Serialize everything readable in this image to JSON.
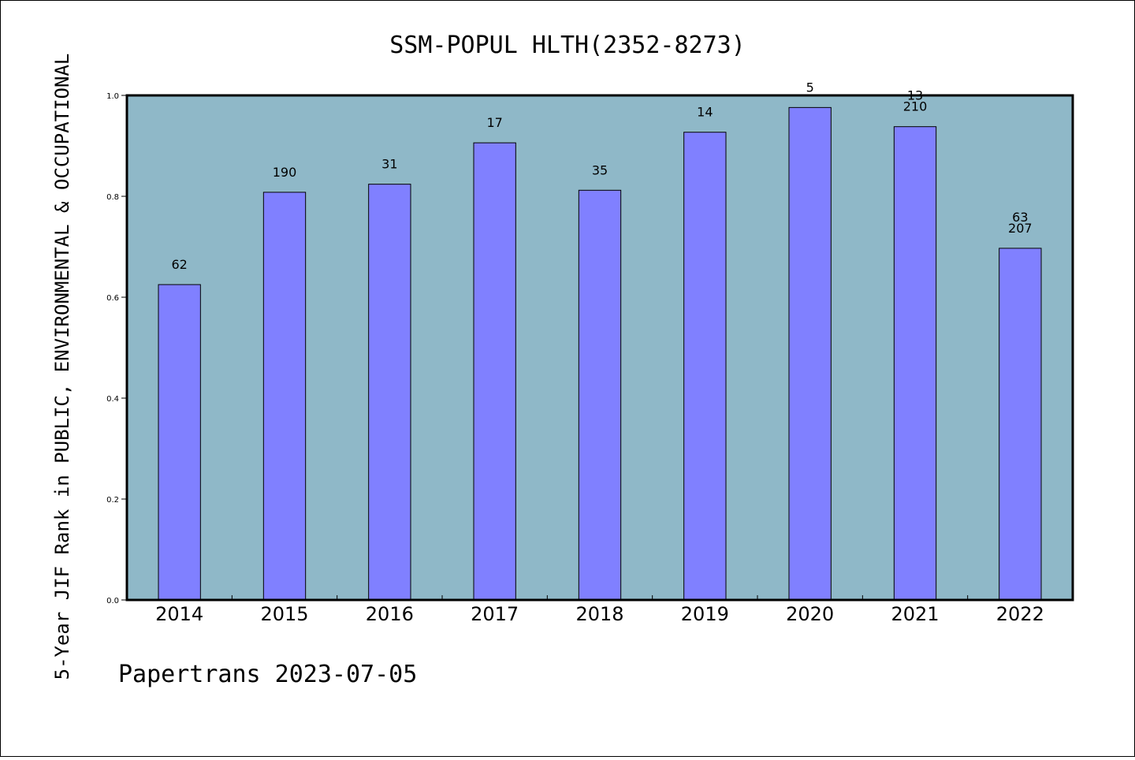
{
  "chart_data": {
    "type": "bar",
    "title": "SSM-POPUL HLTH(2352-8273)",
    "ylabel": "5-Year JIF Rank in PUBLIC, ENVIRONMENTAL & OCCUPATIONAL",
    "xlabel": "",
    "footer": "Papertrans 2023-07-05",
    "categories": [
      "2014",
      "2015",
      "2016",
      "2017",
      "2018",
      "2019",
      "2020",
      "2021",
      "2022"
    ],
    "values": [
      0.625,
      0.808,
      0.824,
      0.906,
      0.812,
      0.927,
      0.976,
      0.938,
      0.697
    ],
    "labels": [
      [
        "62"
      ],
      [
        "190"
      ],
      [
        "31"
      ],
      [
        "17"
      ],
      [
        "35"
      ],
      [
        "14"
      ],
      [
        "5"
      ],
      [
        "13",
        "210"
      ],
      [
        "63",
        "207"
      ]
    ],
    "ylim": [
      0,
      1.0
    ],
    "yticks": [
      "0.0",
      "0.2",
      "0.4",
      "0.6",
      "0.8",
      "1.0"
    ],
    "grid": false,
    "legend": "none",
    "colors": {
      "plot_background": "#8fb8c8",
      "bar_fill": "#8080ff",
      "bar_stroke": "#000000"
    }
  }
}
